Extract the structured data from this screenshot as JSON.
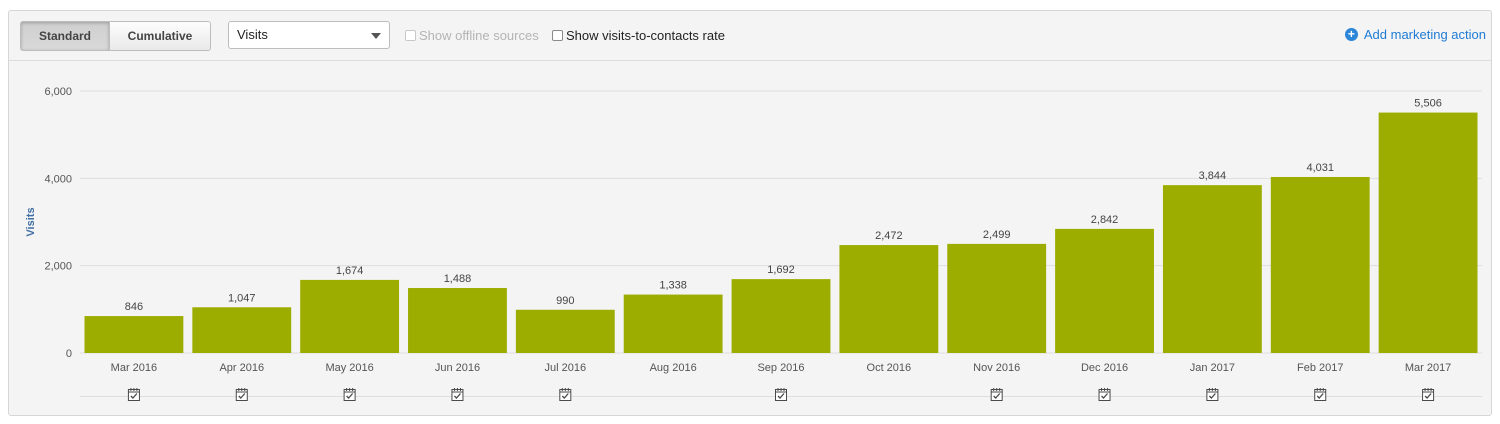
{
  "toolbar": {
    "view_options": [
      "Standard",
      "Cumulative"
    ],
    "selected_view": "Standard",
    "metric_select": "Visits",
    "offline_sources_label": "Show offline sources",
    "offline_sources_checked": false,
    "offline_sources_disabled": true,
    "rate_label": "Show visits-to-contacts rate",
    "rate_checked": false,
    "add_action_label": "Add marketing action",
    "accent_color": "#1f7bd6"
  },
  "chart_data": {
    "type": "bar",
    "categories": [
      "Mar 2016",
      "Apr 2016",
      "May 2016",
      "Jun 2016",
      "Jul 2016",
      "Aug 2016",
      "Sep 2016",
      "Oct 2016",
      "Nov 2016",
      "Dec 2016",
      "Jan 2017",
      "Feb 2017",
      "Mar 2017"
    ],
    "values": [
      846,
      1047,
      1674,
      1488,
      990,
      1338,
      1692,
      2472,
      2499,
      2842,
      3844,
      4031,
      5506
    ],
    "value_labels": [
      "846",
      "1,047",
      "1,674",
      "1,488",
      "990",
      "1,338",
      "1,692",
      "2,472",
      "2,499",
      "2,842",
      "3,844",
      "4,031",
      "5,506"
    ],
    "ylabel": "Visits",
    "ylim": [
      0,
      6000
    ],
    "yticks": [
      0,
      2000,
      4000,
      6000
    ],
    "ytick_labels": [
      "0",
      "2,000",
      "4,000",
      "6,000"
    ],
    "grid": true,
    "bar_color": "#9cad00",
    "marketing_action_icons": [
      true,
      true,
      true,
      true,
      true,
      false,
      true,
      false,
      true,
      true,
      true,
      true,
      true
    ]
  }
}
